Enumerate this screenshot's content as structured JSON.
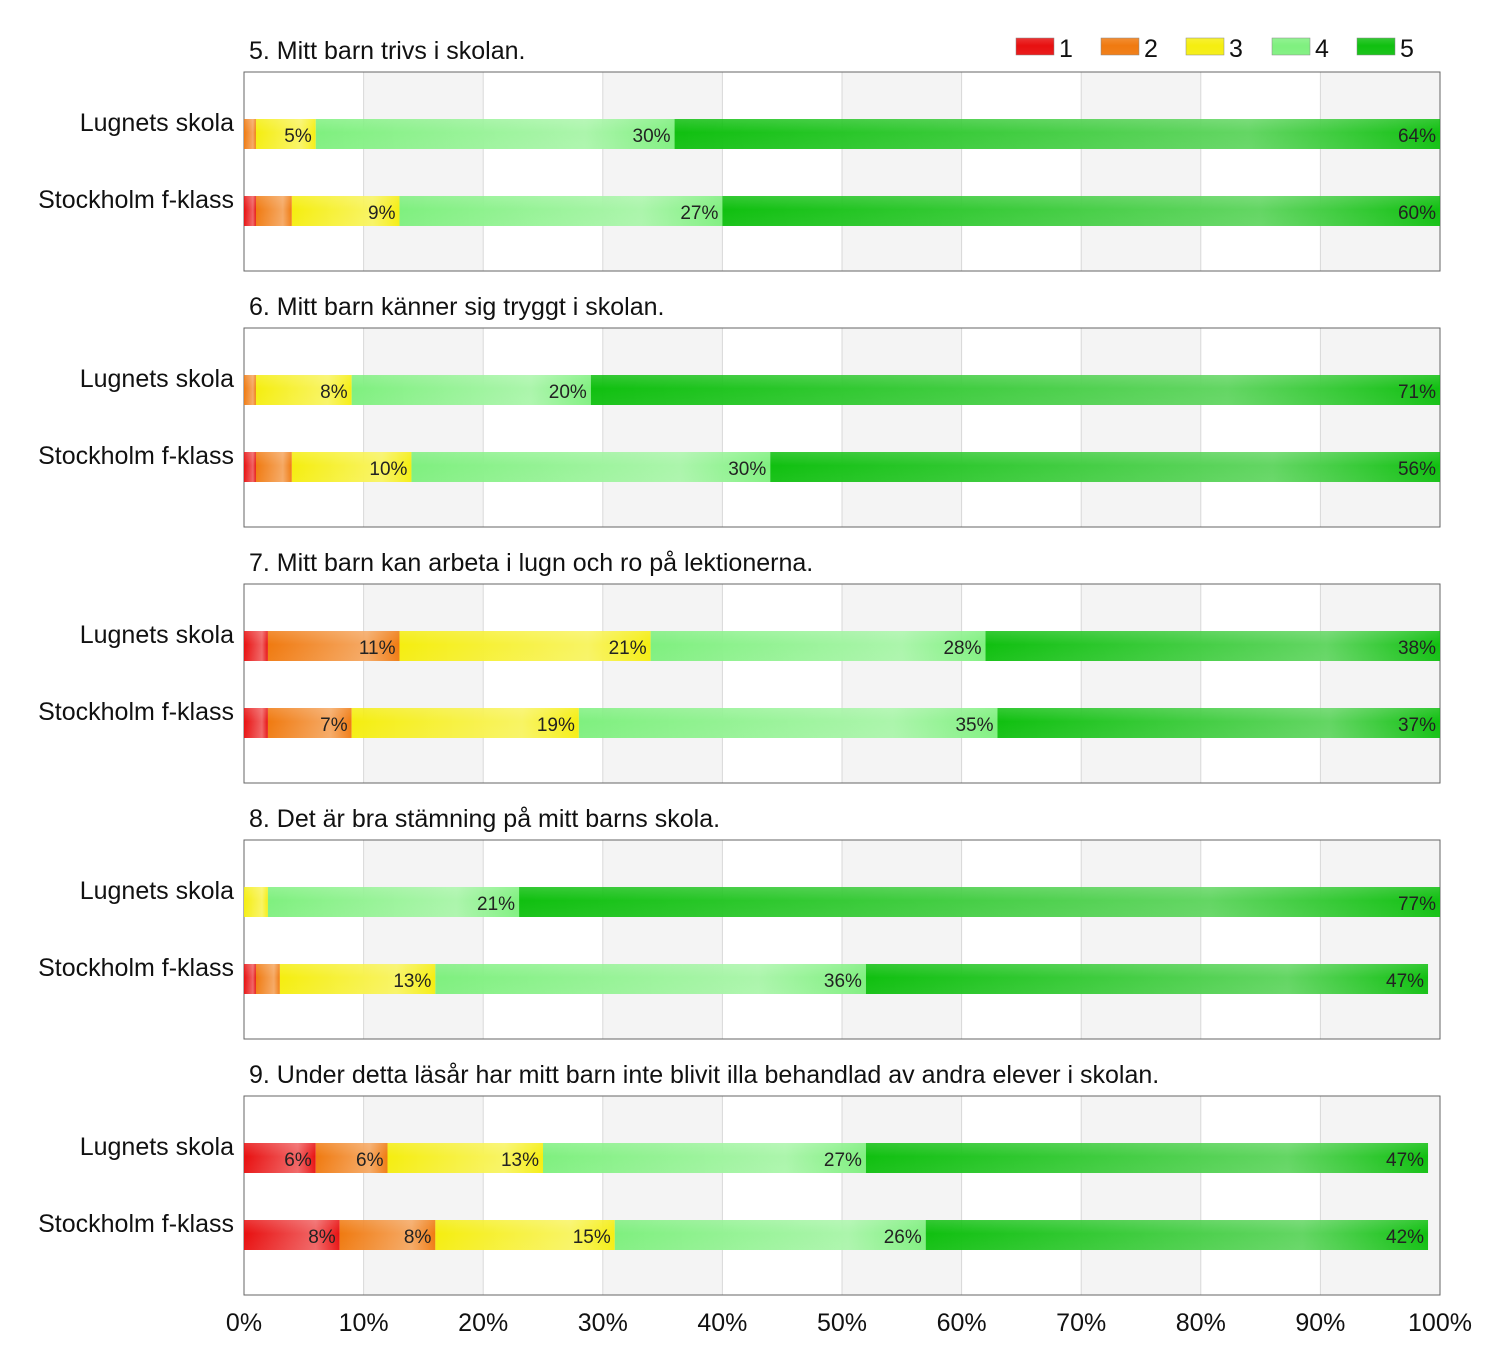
{
  "legend": [
    {
      "label": "1",
      "color": "#e81010"
    },
    {
      "label": "2",
      "color": "#f07a10"
    },
    {
      "label": "3",
      "color": "#f5ee10"
    },
    {
      "label": "4",
      "color": "#7ff07f"
    },
    {
      "label": "5",
      "color": "#10c010"
    }
  ],
  "chart_data": {
    "type": "bar",
    "orientation": "horizontal-stacked",
    "xlim": [
      0,
      100
    ],
    "xticks": [
      "0%",
      "10%",
      "20%",
      "30%",
      "40%",
      "50%",
      "60%",
      "70%",
      "80%",
      "90%",
      "100%"
    ],
    "legend_position": "top-right",
    "grid": true,
    "panels": [
      {
        "title": "5. Mitt barn trivs i skolan.",
        "rows": [
          {
            "label": "Lugnets skola",
            "values": [
              0,
              1,
              5,
              30,
              64
            ],
            "labels": [
              "",
              "",
              "5%",
              "30%",
              "64%"
            ]
          },
          {
            "label": "Stockholm f-klass",
            "values": [
              1,
              3,
              9,
              27,
              60
            ],
            "labels": [
              "",
              "",
              "9%",
              "27%",
              "60%"
            ]
          }
        ]
      },
      {
        "title": "6. Mitt barn känner sig tryggt i skolan.",
        "rows": [
          {
            "label": "Lugnets skola",
            "values": [
              0,
              1,
              8,
              20,
              71
            ],
            "labels": [
              "",
              "",
              "8%",
              "20%",
              "71%"
            ]
          },
          {
            "label": "Stockholm f-klass",
            "values": [
              1,
              3,
              10,
              30,
              56
            ],
            "labels": [
              "",
              "",
              "10%",
              "30%",
              "56%"
            ]
          }
        ]
      },
      {
        "title": "7. Mitt barn kan arbeta i lugn och ro på lektionerna.",
        "rows": [
          {
            "label": "Lugnets skola",
            "values": [
              2,
              11,
              21,
              28,
              38
            ],
            "labels": [
              "",
              "11%",
              "21%",
              "28%",
              "38%"
            ]
          },
          {
            "label": "Stockholm f-klass",
            "values": [
              2,
              7,
              19,
              35,
              37
            ],
            "labels": [
              "",
              "7%",
              "19%",
              "35%",
              "37%"
            ]
          }
        ]
      },
      {
        "title": "8. Det är bra stämning på mitt barns skola.",
        "rows": [
          {
            "label": "Lugnets skola",
            "values": [
              0,
              0,
              2,
              21,
              77
            ],
            "labels": [
              "",
              "",
              "",
              "21%",
              "77%"
            ]
          },
          {
            "label": "Stockholm f-klass",
            "values": [
              1,
              2,
              13,
              36,
              47
            ],
            "labels": [
              "",
              "",
              "13%",
              "36%",
              "47%"
            ]
          }
        ]
      },
      {
        "title": "9. Under detta läsår har mitt barn inte blivit illa behandlad av andra elever i skolan.",
        "rows": [
          {
            "label": "Lugnets skola",
            "values": [
              6,
              6,
              13,
              27,
              47
            ],
            "labels": [
              "6%",
              "6%",
              "13%",
              "27%",
              "47%"
            ]
          },
          {
            "label": "Stockholm f-klass",
            "values": [
              8,
              8,
              15,
              26,
              42
            ],
            "labels": [
              "8%",
              "8%",
              "15%",
              "26%",
              "42%"
            ]
          }
        ]
      }
    ]
  }
}
